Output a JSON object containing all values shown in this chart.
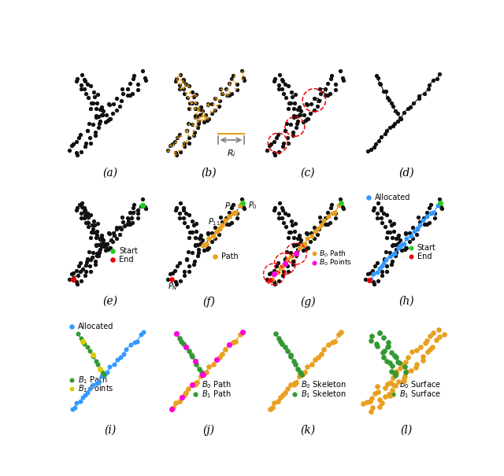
{
  "colors": {
    "black": "#111111",
    "orange": "#E8A020",
    "red": "#EE0000",
    "green": "#22CC22",
    "blue": "#3399FF",
    "magenta": "#FF00DD",
    "dark_green": "#339933",
    "yellow": "#DDCC00"
  },
  "panel_labels": [
    "(a)",
    "(b)",
    "(c)",
    "(d)",
    "(e)",
    "(f)",
    "(g)",
    "(h)",
    "(i)",
    "(j)",
    "(k)",
    "(l)"
  ]
}
